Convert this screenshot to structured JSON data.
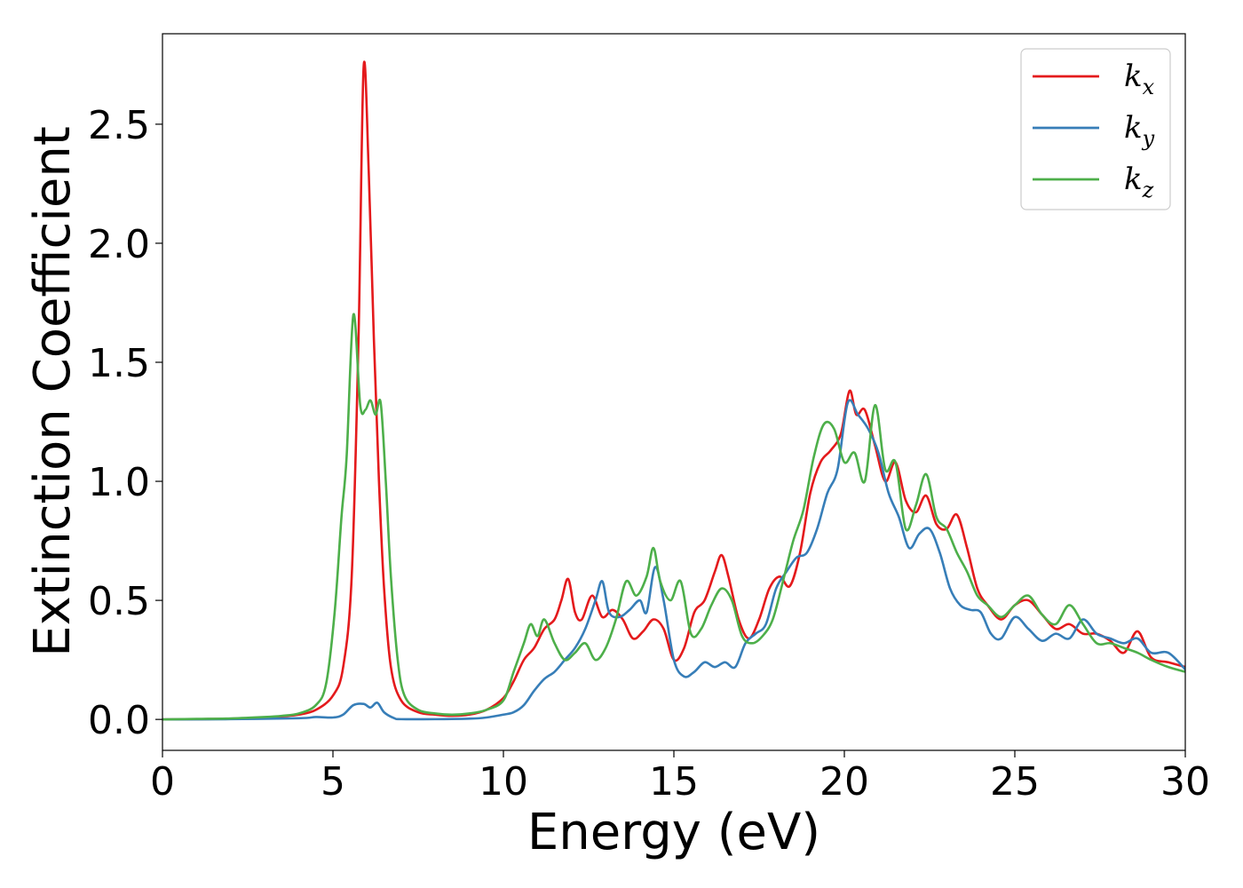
{
  "chart_data": {
    "type": "line",
    "title": "",
    "xlabel": "Energy (eV)",
    "ylabel": "Extinction Coefficient",
    "xlim": [
      0,
      30
    ],
    "ylim": [
      -0.13,
      2.88
    ],
    "xticks": [
      0,
      5,
      10,
      15,
      20,
      25,
      30
    ],
    "xtick_labels": [
      "0",
      "5",
      "10",
      "15",
      "20",
      "25",
      "30"
    ],
    "yticks": [
      0.0,
      0.5,
      1.0,
      1.5,
      2.0,
      2.5
    ],
    "ytick_labels": [
      "0.0",
      "0.5",
      "1.0",
      "1.5",
      "2.0",
      "2.5"
    ],
    "grid": false,
    "legend_position": "top-right",
    "series": [
      {
        "name": "k",
        "subscript": "x",
        "color": "#e41a1c",
        "x": [
          0,
          1,
          2,
          3,
          3.5,
          4,
          4.5,
          5,
          5.3,
          5.55,
          5.75,
          5.9,
          6.05,
          6.2,
          6.35,
          6.5,
          6.7,
          7,
          7.5,
          8,
          8.5,
          9,
          9.5,
          10,
          10.3,
          10.6,
          10.9,
          11.2,
          11.5,
          11.7,
          11.9,
          12.1,
          12.3,
          12.6,
          12.9,
          13.2,
          13.5,
          13.8,
          14.1,
          14.4,
          14.7,
          15,
          15.3,
          15.6,
          15.9,
          16.2,
          16.4,
          16.6,
          16.9,
          17.2,
          17.5,
          17.8,
          18.1,
          18.4,
          18.7,
          19,
          19.3,
          19.6,
          19.9,
          20.15,
          20.35,
          20.6,
          20.9,
          21.2,
          21.5,
          21.8,
          22.1,
          22.4,
          22.7,
          23,
          23.3,
          23.6,
          23.9,
          24.2,
          24.6,
          25,
          25.4,
          25.8,
          26.2,
          26.6,
          27,
          27.4,
          27.8,
          28.2,
          28.6,
          29,
          29.5,
          30
        ],
        "y": [
          0,
          0.001,
          0.003,
          0.008,
          0.013,
          0.02,
          0.04,
          0.1,
          0.22,
          0.6,
          1.6,
          2.74,
          2.3,
          1.6,
          1.0,
          0.55,
          0.22,
          0.08,
          0.03,
          0.02,
          0.015,
          0.02,
          0.04,
          0.09,
          0.16,
          0.25,
          0.3,
          0.38,
          0.42,
          0.5,
          0.59,
          0.45,
          0.42,
          0.52,
          0.43,
          0.46,
          0.42,
          0.34,
          0.37,
          0.42,
          0.38,
          0.25,
          0.3,
          0.45,
          0.5,
          0.62,
          0.69,
          0.6,
          0.42,
          0.34,
          0.42,
          0.55,
          0.6,
          0.56,
          0.7,
          0.95,
          1.08,
          1.13,
          1.2,
          1.38,
          1.28,
          1.3,
          1.15,
          1.0,
          1.08,
          0.92,
          0.87,
          0.94,
          0.82,
          0.8,
          0.86,
          0.72,
          0.55,
          0.48,
          0.42,
          0.48,
          0.5,
          0.44,
          0.38,
          0.4,
          0.36,
          0.36,
          0.33,
          0.28,
          0.37,
          0.26,
          0.24,
          0.22
        ]
      },
      {
        "name": "k",
        "subscript": "y",
        "color": "#377eb8",
        "x": [
          0,
          2,
          4,
          4.5,
          5,
          5.3,
          5.6,
          5.9,
          6.1,
          6.3,
          6.5,
          6.8,
          7,
          8,
          9,
          9.5,
          10,
          10.3,
          10.6,
          10.9,
          11.2,
          11.5,
          11.8,
          12.1,
          12.4,
          12.7,
          12.9,
          13.1,
          13.4,
          13.7,
          14,
          14.2,
          14.45,
          14.7,
          15,
          15.3,
          15.6,
          15.9,
          16.2,
          16.5,
          16.8,
          17.1,
          17.4,
          17.7,
          18,
          18.3,
          18.6,
          18.9,
          19.2,
          19.5,
          19.8,
          20.1,
          20.4,
          20.7,
          21,
          21.3,
          21.6,
          21.9,
          22.2,
          22.5,
          22.8,
          23.1,
          23.4,
          23.7,
          24,
          24.3,
          24.6,
          25,
          25.4,
          25.8,
          26.2,
          26.6,
          27,
          27.4,
          27.8,
          28.2,
          28.6,
          29,
          29.5,
          30
        ],
        "y": [
          0,
          0.001,
          0.005,
          0.01,
          0.008,
          0.02,
          0.06,
          0.065,
          0.05,
          0.07,
          0.03,
          0.005,
          0.001,
          0.001,
          0.003,
          0.008,
          0.02,
          0.03,
          0.06,
          0.12,
          0.17,
          0.2,
          0.25,
          0.3,
          0.38,
          0.5,
          0.58,
          0.45,
          0.43,
          0.46,
          0.5,
          0.45,
          0.64,
          0.5,
          0.25,
          0.18,
          0.2,
          0.24,
          0.22,
          0.24,
          0.22,
          0.32,
          0.36,
          0.4,
          0.55,
          0.62,
          0.68,
          0.7,
          0.8,
          0.95,
          1.05,
          1.33,
          1.28,
          1.22,
          1.12,
          0.95,
          0.85,
          0.72,
          0.78,
          0.8,
          0.7,
          0.55,
          0.48,
          0.46,
          0.45,
          0.36,
          0.34,
          0.43,
          0.38,
          0.33,
          0.36,
          0.34,
          0.42,
          0.36,
          0.34,
          0.32,
          0.34,
          0.28,
          0.28,
          0.21
        ]
      },
      {
        "name": "k",
        "subscript": "z",
        "color": "#4daf4a",
        "x": [
          0,
          1,
          2,
          3,
          3.5,
          4,
          4.5,
          4.8,
          5.05,
          5.25,
          5.4,
          5.6,
          5.8,
          5.95,
          6.1,
          6.25,
          6.4,
          6.55,
          6.7,
          6.9,
          7.1,
          7.5,
          8,
          8.5,
          9,
          9.5,
          10,
          10.3,
          10.6,
          10.8,
          11,
          11.2,
          11.5,
          11.8,
          12.1,
          12.4,
          12.7,
          13,
          13.3,
          13.6,
          13.9,
          14.2,
          14.4,
          14.6,
          14.9,
          15.2,
          15.5,
          15.8,
          16.1,
          16.4,
          16.7,
          17,
          17.3,
          17.6,
          17.9,
          18.2,
          18.5,
          18.8,
          19.1,
          19.4,
          19.7,
          20,
          20.3,
          20.6,
          20.9,
          21.2,
          21.5,
          21.8,
          22.1,
          22.4,
          22.7,
          23,
          23.3,
          23.6,
          23.9,
          24.2,
          24.6,
          25,
          25.4,
          25.8,
          26.2,
          26.6,
          27,
          27.4,
          27.8,
          28.2,
          28.6,
          29,
          29.5,
          30
        ],
        "y": [
          0,
          0.002,
          0.004,
          0.01,
          0.015,
          0.025,
          0.06,
          0.15,
          0.45,
          0.85,
          1.1,
          1.7,
          1.32,
          1.3,
          1.34,
          1.28,
          1.33,
          1.0,
          0.6,
          0.25,
          0.1,
          0.04,
          0.025,
          0.02,
          0.025,
          0.04,
          0.08,
          0.2,
          0.32,
          0.4,
          0.35,
          0.42,
          0.32,
          0.25,
          0.28,
          0.32,
          0.25,
          0.3,
          0.42,
          0.58,
          0.52,
          0.6,
          0.72,
          0.58,
          0.5,
          0.58,
          0.36,
          0.38,
          0.48,
          0.55,
          0.5,
          0.35,
          0.32,
          0.35,
          0.42,
          0.58,
          0.75,
          0.88,
          1.1,
          1.24,
          1.22,
          1.08,
          1.12,
          1.0,
          1.32,
          1.05,
          1.08,
          0.8,
          0.9,
          1.03,
          0.85,
          0.8,
          0.7,
          0.62,
          0.52,
          0.48,
          0.43,
          0.48,
          0.52,
          0.44,
          0.4,
          0.48,
          0.4,
          0.32,
          0.32,
          0.3,
          0.28,
          0.25,
          0.22,
          0.2
        ]
      }
    ]
  }
}
